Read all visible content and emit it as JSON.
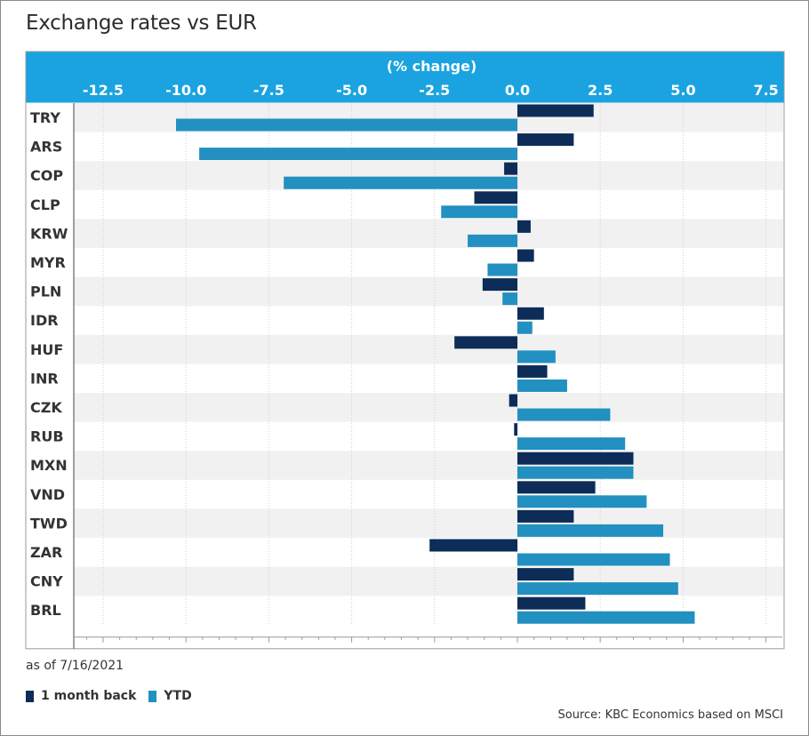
{
  "page": {
    "title": "Exchange rates vs EUR"
  },
  "footer": {
    "note": "as of 7/16/2021",
    "source": "Source: KBC Economics based on MSCI"
  },
  "colors": {
    "header": "#1aa3e0",
    "series1": "#0d2c57",
    "series2": "#2290c0",
    "stripe": "#f1f1f1"
  },
  "chart_data": {
    "type": "bar",
    "orientation": "horizontal",
    "xlabel": "(% change)",
    "xlim": [
      -13.5,
      8.0
    ],
    "xticks": [
      -12.5,
      -10.0,
      -7.5,
      -5.0,
      -2.5,
      0.0,
      2.5,
      5.0,
      7.5
    ],
    "xtick_labels": [
      "-12.5",
      "-10.0",
      "-7.5",
      "-5.0",
      "-2.5",
      "0.0",
      "2.5",
      "5.0",
      "7.5"
    ],
    "grid": true,
    "legend_position": "bottom-left",
    "categories": [
      "TRY",
      "ARS",
      "COP",
      "CLP",
      "KRW",
      "MYR",
      "PLN",
      "IDR",
      "HUF",
      "INR",
      "CZK",
      "RUB",
      "MXN",
      "VND",
      "TWD",
      "ZAR",
      "CNY",
      "BRL"
    ],
    "series": [
      {
        "name": "1 month back",
        "values": [
          2.3,
          1.7,
          -0.4,
          -1.3,
          0.4,
          0.5,
          -1.05,
          0.8,
          -1.9,
          0.9,
          -0.25,
          -0.1,
          3.5,
          2.35,
          1.7,
          -2.65,
          1.7,
          2.05
        ]
      },
      {
        "name": "YTD",
        "values": [
          -10.3,
          -9.6,
          -7.05,
          -2.3,
          -1.5,
          -0.9,
          -0.45,
          0.45,
          1.15,
          1.5,
          2.8,
          3.25,
          3.5,
          3.9,
          4.4,
          4.6,
          4.85,
          5.35
        ]
      }
    ]
  }
}
